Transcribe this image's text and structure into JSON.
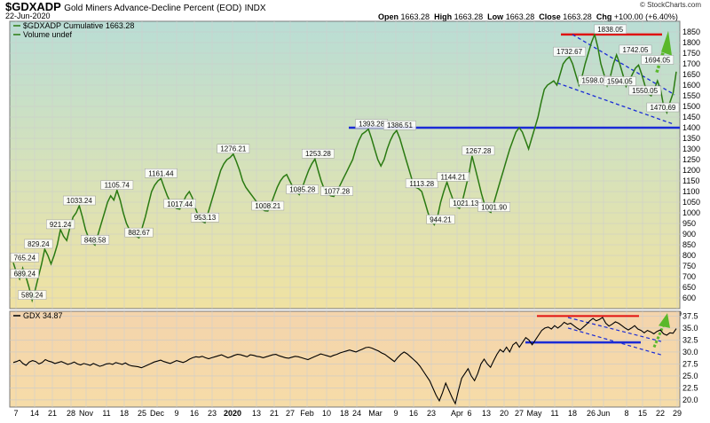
{
  "header": {
    "symbol": "$GDXADP",
    "description": "Gold Miners Advance-Decline Percent (EOD)",
    "exchange": "INDX",
    "date": "22-Jun-2020",
    "watermark": "© StockCharts.com",
    "ohlc": {
      "open_label": "Open",
      "open": "1663.28",
      "high_label": "High",
      "high": "1663.28",
      "low_label": "Low",
      "low": "1663.28",
      "close_label": "Close",
      "close": "1663.28",
      "chg_label": "Chg",
      "chg": "+100.00 (+6.40%)"
    }
  },
  "colors": {
    "main_line": "#2a7a12",
    "gdx_line": "#000000",
    "support": "#1a2bd6",
    "resistance": "#e01010",
    "channel": "#1a2bd6",
    "arrow": "#5ab82a"
  },
  "chart_data": [
    {
      "type": "line",
      "legend": [
        "$GDXADP Cumulative 1663.28",
        "Volume undef"
      ],
      "ylim": [
        550,
        1900
      ],
      "yticks": [
        600,
        650,
        700,
        750,
        800,
        850,
        900,
        950,
        1000,
        1050,
        1100,
        1150,
        1200,
        1250,
        1300,
        1350,
        1400,
        1450,
        1500,
        1550,
        1600,
        1650,
        1700,
        1750,
        1800,
        1850
      ],
      "x_ticks": [
        "7",
        "14",
        "21",
        "28",
        "Nov",
        "11",
        "18",
        "25",
        "Dec",
        "9",
        "16",
        "23",
        "2020",
        "13",
        "21",
        "27",
        "Feb",
        "10",
        "18",
        "24",
        "Mar",
        "9",
        "16",
        "23",
        "Apr",
        "6",
        "13",
        "20",
        "27",
        "May",
        "11",
        "18",
        "26",
        "Jun",
        "8",
        "15",
        "22",
        "29"
      ],
      "annotations": [
        {
          "text": "765.24",
          "x": 1,
          "y": 765.24
        },
        {
          "text": "689.24",
          "x": 3,
          "y": 689.24
        },
        {
          "text": "829.24",
          "x": 8,
          "y": 829.24
        },
        {
          "text": "589.24",
          "x": 6,
          "y": 589.24
        },
        {
          "text": "921.24",
          "x": 15,
          "y": 921.24
        },
        {
          "text": "1033.24",
          "x": 21,
          "y": 1033.24
        },
        {
          "text": "848.58",
          "x": 26,
          "y": 848.58
        },
        {
          "text": "1105.74",
          "x": 33,
          "y": 1105.74
        },
        {
          "text": "882.67",
          "x": 40,
          "y": 882.67
        },
        {
          "text": "1161.44",
          "x": 47,
          "y": 1161.44
        },
        {
          "text": "1017.44",
          "x": 53,
          "y": 1017.44
        },
        {
          "text": "953.13",
          "x": 61,
          "y": 953.13
        },
        {
          "text": "1276.21",
          "x": 70,
          "y": 1276.21
        },
        {
          "text": "1008.21",
          "x": 81,
          "y": 1008.21
        },
        {
          "text": "1085.28",
          "x": 92,
          "y": 1085.28
        },
        {
          "text": "1253.28",
          "x": 97,
          "y": 1253.28
        },
        {
          "text": "1077.28",
          "x": 103,
          "y": 1077.28
        },
        {
          "text": "1393.28",
          "x": 114,
          "y": 1393.28
        },
        {
          "text": "1386.51",
          "x": 123,
          "y": 1386.51
        },
        {
          "text": "1113.28",
          "x": 130,
          "y": 1113.28
        },
        {
          "text": "944.21",
          "x": 136,
          "y": 944.21
        },
        {
          "text": "1144.21",
          "x": 140,
          "y": 1144.21
        },
        {
          "text": "1021.13",
          "x": 144,
          "y": 1021.13
        },
        {
          "text": "1267.28",
          "x": 148,
          "y": 1267.28
        },
        {
          "text": "1001.90",
          "x": 153,
          "y": 1001.9
        },
        {
          "text": "1732.67",
          "x": 177,
          "y": 1732.67
        },
        {
          "text": "1838.05",
          "x": 190,
          "y": 1838.05
        },
        {
          "text": "1598.05",
          "x": 185,
          "y": 1598.05
        },
        {
          "text": "1742.05",
          "x": 198,
          "y": 1742.05
        },
        {
          "text": "1594.05",
          "x": 193,
          "y": 1594.05
        },
        {
          "text": "1694.05",
          "x": 205,
          "y": 1694.05
        },
        {
          "text": "1550.05",
          "x": 201,
          "y": 1550.05
        },
        {
          "text": "1470.69",
          "x": 210,
          "y": 1470.69
        }
      ],
      "series": [
        {
          "values": [
            765.24,
            720,
            689.24,
            740,
            700,
            650,
            589.24,
            640,
            700,
            760,
            829.24,
            800,
            760,
            800,
            850,
            921.24,
            890,
            870,
            930,
            980,
            1000,
            1033.24,
            980,
            920,
            880,
            860,
            848.58,
            900,
            950,
            1000,
            1050,
            1080,
            1060,
            1105.74,
            1060,
            1000,
            950,
            920,
            900,
            890,
            882.67,
            930,
            980,
            1040,
            1100,
            1130,
            1150,
            1161.44,
            1120,
            1080,
            1050,
            1030,
            1020,
            1017.44,
            1050,
            1080,
            1100,
            1070,
            1020,
            980,
            960,
            953.13,
            1000,
            1050,
            1100,
            1150,
            1200,
            1230,
            1250,
            1260,
            1276.21,
            1240,
            1200,
            1150,
            1120,
            1100,
            1080,
            1060,
            1040,
            1020,
            1010,
            1008.21,
            1040,
            1080,
            1120,
            1150,
            1170,
            1180,
            1150,
            1120,
            1100,
            1085.28,
            1120,
            1160,
            1200,
            1230,
            1253.28,
            1200,
            1150,
            1110,
            1090,
            1080,
            1077.28,
            1100,
            1130,
            1160,
            1190,
            1220,
            1250,
            1300,
            1340,
            1370,
            1380,
            1393.28,
            1350,
            1300,
            1250,
            1220,
            1250,
            1300,
            1340,
            1370,
            1386.51,
            1350,
            1300,
            1250,
            1200,
            1150,
            1120,
            1113.28,
            1100,
            1050,
            1000,
            960,
            944.21,
            980,
            1050,
            1100,
            1144.21,
            1100,
            1060,
            1030,
            1021.13,
            1060,
            1120,
            1180,
            1267.28,
            1210,
            1150,
            1090,
            1040,
            1010,
            1001.9,
            1050,
            1100,
            1150,
            1200,
            1250,
            1300,
            1340,
            1380,
            1400,
            1380,
            1340,
            1300,
            1350,
            1400,
            1450,
            1520,
            1580,
            1600,
            1610,
            1620,
            1600,
            1650,
            1700,
            1720,
            1732.67,
            1700,
            1650,
            1600,
            1640,
            1700,
            1750,
            1800,
            1838.05,
            1780,
            1700,
            1650,
            1598.05,
            1640,
            1700,
            1742.05,
            1700,
            1650,
            1594.05,
            1620,
            1650,
            1680,
            1694.05,
            1650,
            1600,
            1560,
            1550.05,
            1580,
            1620,
            1580,
            1500,
            1470.69,
            1520,
            1563.28,
            1663.28
          ]
        }
      ],
      "support_level": 1400,
      "resistance_level": 1838.05
    },
    {
      "type": "line",
      "legend": [
        "GDX 34.87"
      ],
      "ylim": [
        18.5,
        38.5
      ],
      "yticks": [
        20.0,
        22.5,
        25.0,
        27.5,
        30.0,
        32.5,
        35.0,
        37.5
      ],
      "x_ticks": [
        "7",
        "14",
        "21",
        "28",
        "Nov",
        "11",
        "18",
        "25",
        "Dec",
        "9",
        "16",
        "23",
        "2020",
        "13",
        "21",
        "27",
        "Feb",
        "10",
        "18",
        "24",
        "Mar",
        "9",
        "16",
        "23",
        "Apr",
        "6",
        "13",
        "20",
        "27",
        "May",
        "11",
        "18",
        "26",
        "Jun",
        "8",
        "15",
        "22",
        "29"
      ],
      "series": [
        {
          "values": [
            27.8,
            28.0,
            28.3,
            27.6,
            27.2,
            27.9,
            28.2,
            28.0,
            27.5,
            27.8,
            28.4,
            28.1,
            27.9,
            27.6,
            27.8,
            28.0,
            27.7,
            27.4,
            27.6,
            27.9,
            27.5,
            27.3,
            27.6,
            27.4,
            27.2,
            27.6,
            27.3,
            27.0,
            27.2,
            27.5,
            27.6,
            27.4,
            27.8,
            27.6,
            27.4,
            27.7,
            27.3,
            27.1,
            27.0,
            26.9,
            26.7,
            27.0,
            27.3,
            27.6,
            27.9,
            28.1,
            28.3,
            28.0,
            27.8,
            27.6,
            27.9,
            28.2,
            28.0,
            27.8,
            28.1,
            28.5,
            28.8,
            29.0,
            28.9,
            29.1,
            28.8,
            28.6,
            28.8,
            29.0,
            29.2,
            29.4,
            29.1,
            28.8,
            29.0,
            29.3,
            29.5,
            29.4,
            29.2,
            29.0,
            29.4,
            29.3,
            29.1,
            29.0,
            28.8,
            29.0,
            29.2,
            29.4,
            29.5,
            29.2,
            29.0,
            28.8,
            28.7,
            28.9,
            29.1,
            29.0,
            28.8,
            28.6,
            28.4,
            28.7,
            29.0,
            29.3,
            29.6,
            29.4,
            29.2,
            29.0,
            29.3,
            29.5,
            29.8,
            30.0,
            30.2,
            30.4,
            30.2,
            30.0,
            30.3,
            30.6,
            30.9,
            31.0,
            30.8,
            30.5,
            30.2,
            29.8,
            29.5,
            29.0,
            28.5,
            28.0,
            28.8,
            29.5,
            30.0,
            29.6,
            29.0,
            28.4,
            27.8,
            27.0,
            26.0,
            25.0,
            24.0,
            22.5,
            21.0,
            19.8,
            21.5,
            23.5,
            22.0,
            20.5,
            19.2,
            22.0,
            24.5,
            25.5,
            26.5,
            25.0,
            24.0,
            25.5,
            27.5,
            28.5,
            27.5,
            26.8,
            28.2,
            29.5,
            30.5,
            30.0,
            31.0,
            30.0,
            31.5,
            32.0,
            31.0,
            32.0,
            33.0,
            32.5,
            31.5,
            32.5,
            33.5,
            34.5,
            35.0,
            35.2,
            34.8,
            35.5,
            35.0,
            35.5,
            36.2,
            35.8,
            36.0,
            35.5,
            35.0,
            34.6,
            35.2,
            35.8,
            36.5,
            37.0,
            36.5,
            36.8,
            37.2,
            36.0,
            35.4,
            35.8,
            36.3,
            36.0,
            35.5,
            35.0,
            34.6,
            35.0,
            35.5,
            34.8,
            34.5,
            34.0,
            34.5,
            34.2,
            33.8,
            34.3,
            34.6,
            33.8,
            33.5,
            34.0,
            33.9,
            34.87
          ]
        }
      ],
      "support_level": 32.0,
      "resistance_level": 37.5
    }
  ]
}
